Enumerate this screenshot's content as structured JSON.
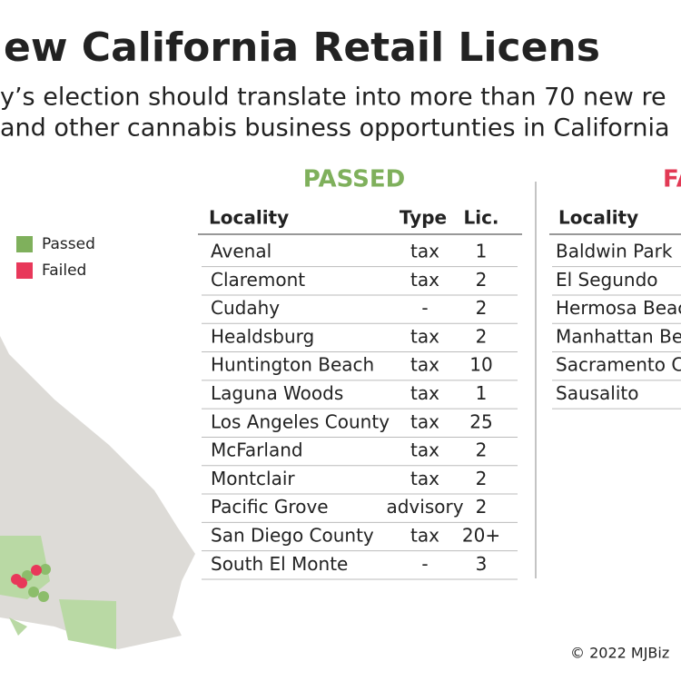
{
  "header": {
    "title": "ew California Retail Licens",
    "subtitle": [
      "y’s election should translate into more than 70 new re",
      "and other cannabis business opportunties in California"
    ]
  },
  "legend": [
    "Passed",
    "Failed"
  ],
  "passed": {
    "heading": "PASSED",
    "columns": [
      "Locality",
      "Type",
      "Lic."
    ],
    "rows": [
      [
        "Avenal",
        "tax",
        "1"
      ],
      [
        "Claremont",
        "tax",
        "2"
      ],
      [
        "Cudahy",
        "-",
        "2"
      ],
      [
        "Healdsburg",
        "tax",
        "2"
      ],
      [
        "Huntington Beach",
        "tax",
        "10"
      ],
      [
        "Laguna Woods",
        "tax",
        "1"
      ],
      [
        "Los Angeles County",
        "tax",
        "25"
      ],
      [
        "McFarland",
        "tax",
        "2"
      ],
      [
        "Montclair",
        "tax",
        "2"
      ],
      [
        "Pacific Grove",
        "advisory",
        "2"
      ],
      [
        "San Diego County",
        "tax",
        "20+"
      ],
      [
        "South El Monte",
        "-",
        "3"
      ]
    ]
  },
  "failed": {
    "heading": "FA",
    "columns": [
      "Locality"
    ],
    "rows": [
      [
        "Baldwin Park"
      ],
      [
        "El Segundo"
      ],
      [
        "Hermosa Beac"
      ],
      [
        "Manhattan Be"
      ],
      [
        "Sacramento C"
      ],
      [
        "Sausalito"
      ]
    ]
  },
  "footer": "© 2022 MJBiz"
}
